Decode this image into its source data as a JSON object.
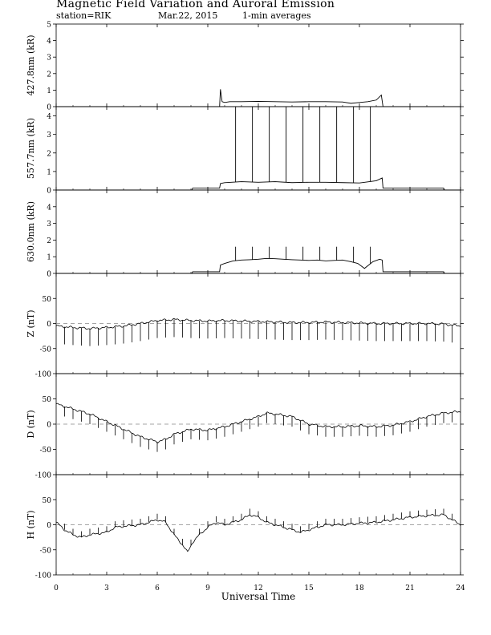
{
  "header": {
    "title": "Magnetic Field Variation and Auroral Emission",
    "station": "station=RIK",
    "date": "Mar.22, 2015",
    "averaging": "1-min averages"
  },
  "chart_data": {
    "type": "line",
    "title": "Magnetic Field Variation and Auroral Emission",
    "xlabel": "Universal Time",
    "xlim": [
      0,
      24
    ],
    "x_ticks": [
      "0",
      "3",
      "6",
      "9",
      "12",
      "15",
      "18",
      "21",
      "24"
    ],
    "grid": false,
    "panels": [
      {
        "name": "427.8nm",
        "ylabel": "427.8nm (kR)",
        "ylim": [
          0,
          5
        ],
        "y_ticks": [
          "0",
          "1",
          "2",
          "3",
          "4",
          "5"
        ],
        "series": [
          {
            "x": [
              0,
              9.7,
              9.75,
              9.85,
              10.0,
              10.3,
              11.0,
              12.0,
              13.0,
              14.0,
              15.0,
              16.0,
              17.0,
              17.5,
              18.0,
              18.5,
              19.0,
              19.3,
              19.4,
              24
            ],
            "y": [
              0,
              0,
              1.05,
              0.3,
              0.25,
              0.3,
              0.3,
              0.32,
              0.3,
              0.28,
              0.3,
              0.3,
              0.28,
              0.2,
              0.25,
              0.3,
              0.4,
              0.7,
              0,
              0
            ]
          }
        ],
        "spikes": []
      },
      {
        "name": "557.7nm",
        "ylabel": "557.7nm (kR)",
        "ylim": [
          0,
          4.5
        ],
        "y_ticks": [
          "0",
          "1",
          "2",
          "3",
          "4"
        ],
        "series": [
          {
            "x": [
              0,
              8.05,
              8.1,
              9.7,
              9.75,
              10.0,
              11.0,
              12.0,
              13.0,
              14.0,
              15.0,
              16.0,
              17.0,
              18.0,
              19.0,
              19.35,
              19.4,
              23.0,
              23.05,
              24
            ],
            "y": [
              0,
              0,
              0.1,
              0.1,
              0.35,
              0.4,
              0.45,
              0.42,
              0.45,
              0.4,
              0.42,
              0.42,
              0.4,
              0.38,
              0.5,
              0.65,
              0.1,
              0.1,
              0,
              0
            ]
          }
        ],
        "spikes": [
          10.65,
          11.65,
          12.65,
          13.65,
          14.65,
          15.65,
          16.65,
          17.65,
          18.65
        ],
        "spike_value": 4.5
      },
      {
        "name": "630.0nm",
        "ylabel": "630.0nm (kR)",
        "ylim": [
          0,
          5
        ],
        "y_ticks": [
          "0",
          "1",
          "2",
          "3",
          "4"
        ],
        "series": [
          {
            "x": [
              0,
              8.05,
              8.1,
              9.7,
              9.75,
              10.0,
              10.5,
              11.0,
              11.5,
              12.0,
              12.5,
              13.0,
              13.5,
              14.0,
              14.5,
              15.0,
              15.5,
              16.0,
              16.5,
              17.0,
              17.5,
              17.9,
              18.3,
              18.8,
              19.2,
              19.35,
              19.4,
              23.0,
              23.05,
              24
            ],
            "y": [
              0,
              0,
              0.1,
              0.1,
              0.5,
              0.6,
              0.75,
              0.8,
              0.82,
              0.85,
              0.9,
              0.88,
              0.85,
              0.82,
              0.8,
              0.78,
              0.8,
              0.75,
              0.78,
              0.8,
              0.7,
              0.6,
              0.3,
              0.7,
              0.85,
              0.8,
              0.1,
              0.1,
              0,
              0
            ]
          }
        ],
        "spikes": [
          10.65,
          11.65,
          12.65,
          13.65,
          14.65,
          15.65,
          16.65,
          17.65,
          18.65
        ],
        "spike_value": 1.6
      },
      {
        "name": "Z",
        "ylabel": "Z (nT)",
        "ylim": [
          -100,
          100
        ],
        "y_ticks": [
          "-100",
          "-50",
          "0",
          "50"
        ],
        "baseline": 0,
        "series": [
          {
            "x": [
              0,
              1,
              2,
              3,
              4,
              5,
              6,
              7,
              8,
              9,
              10,
              11,
              12,
              13,
              14,
              15,
              16,
              17,
              18,
              19,
              20,
              21,
              22,
              23,
              24
            ],
            "y": [
              -5,
              -8,
              -10,
              -8,
              -5,
              0,
              6,
              8,
              6,
              5,
              6,
              5,
              4,
              3,
              2,
              2,
              3,
              2,
              1,
              0,
              0,
              0,
              0,
              -1,
              -5
            ]
          }
        ],
        "spike_interval": 0.5,
        "spike_depth": -35
      },
      {
        "name": "D",
        "ylabel": "D (nT)",
        "ylim": [
          -100,
          100
        ],
        "y_ticks": [
          "-100",
          "-50",
          "0",
          "50"
        ],
        "baseline": 0,
        "series": [
          {
            "x": [
              0,
              1,
              2,
              3,
              4,
              5,
              6,
              6.5,
              7,
              8,
              9,
              10,
              11,
              12,
              12.5,
              13,
              14,
              15,
              16,
              17,
              18,
              19,
              20,
              21,
              22,
              23,
              24
            ],
            "y": [
              40,
              30,
              20,
              5,
              -10,
              -25,
              -35,
              -30,
              -20,
              -10,
              -12,
              -5,
              5,
              15,
              22,
              20,
              15,
              0,
              -5,
              -5,
              -3,
              -5,
              -2,
              5,
              15,
              22,
              25
            ]
          }
        ],
        "spike_interval": 0.5,
        "spike_depth": -20
      },
      {
        "name": "H",
        "ylabel": "H (nT)",
        "ylim": [
          -100,
          100
        ],
        "y_ticks": [
          "-100",
          "-50",
          "0",
          "50"
        ],
        "baseline": 0,
        "series": [
          {
            "x": [
              0,
              0.5,
              1,
              1.5,
              2,
              3,
              3.5,
              4,
              5,
              6,
              6.5,
              7,
              7.5,
              7.8,
              8.1,
              8.5,
              9,
              9.5,
              10,
              11,
              11.5,
              12,
              12.5,
              13,
              13.5,
              14,
              14.5,
              15,
              16,
              17,
              18,
              19,
              20,
              21,
              22,
              23,
              23.5,
              24
            ],
            "y": [
              5,
              -10,
              -20,
              -25,
              -20,
              -15,
              -5,
              -3,
              0,
              10,
              5,
              -20,
              -40,
              -55,
              -35,
              -20,
              -5,
              5,
              0,
              10,
              20,
              15,
              5,
              0,
              -5,
              -10,
              -15,
              -10,
              0,
              0,
              3,
              5,
              10,
              15,
              18,
              20,
              10,
              0
            ]
          }
        ],
        "spike_interval": 0.5,
        "spike_depth": 12
      }
    ]
  }
}
